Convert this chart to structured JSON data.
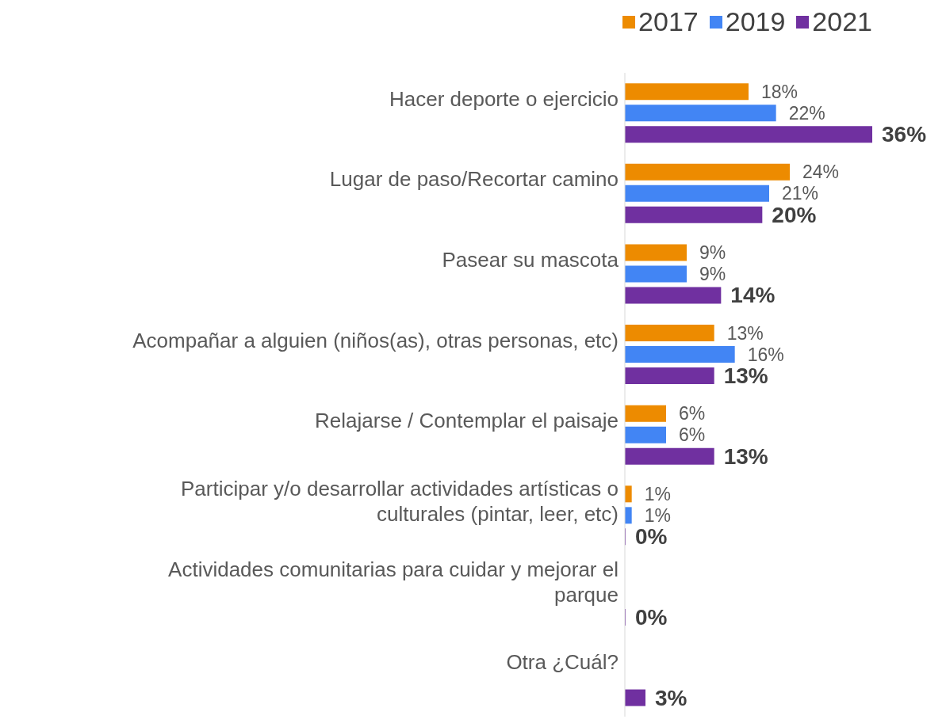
{
  "chart_data": {
    "type": "bar",
    "orientation": "horizontal",
    "categories": [
      "Hacer deporte o ejercicio",
      "Lugar de paso/Recortar camino",
      "Pasear su mascota",
      "Acompañar a alguien (niños(as), otras personas, etc)",
      "Relajarse / Contemplar el paisaje",
      "Participar y/o desarrollar actividades artísticas o culturales (pintar, leer, etc)",
      "Actividades comunitarias para cuidar y mejorar el parque",
      "Otra ¿Cuál?"
    ],
    "series": [
      {
        "name": "2017",
        "color": "#ed8b00",
        "values": [
          18,
          24,
          9,
          13,
          6,
          1,
          null,
          null
        ],
        "value_labels": [
          "18%",
          "24%",
          "9%",
          "13%",
          "6%",
          "1%",
          null,
          null
        ]
      },
      {
        "name": "2019",
        "color": "#4285f4",
        "values": [
          22,
          21,
          9,
          16,
          6,
          1,
          null,
          null
        ],
        "value_labels": [
          "22%",
          "21%",
          "9%",
          "16%",
          "6%",
          "1%",
          null,
          null
        ]
      },
      {
        "name": "2021",
        "color": "#7030a0",
        "values": [
          36,
          20,
          14,
          13,
          13,
          0,
          0,
          3
        ],
        "value_labels": [
          "36%",
          "20%",
          "14%",
          "13%",
          "13%",
          "0%",
          "0%",
          "3%"
        ]
      }
    ],
    "tick_labels": "y",
    "legend": "top right",
    "grid": false
  }
}
